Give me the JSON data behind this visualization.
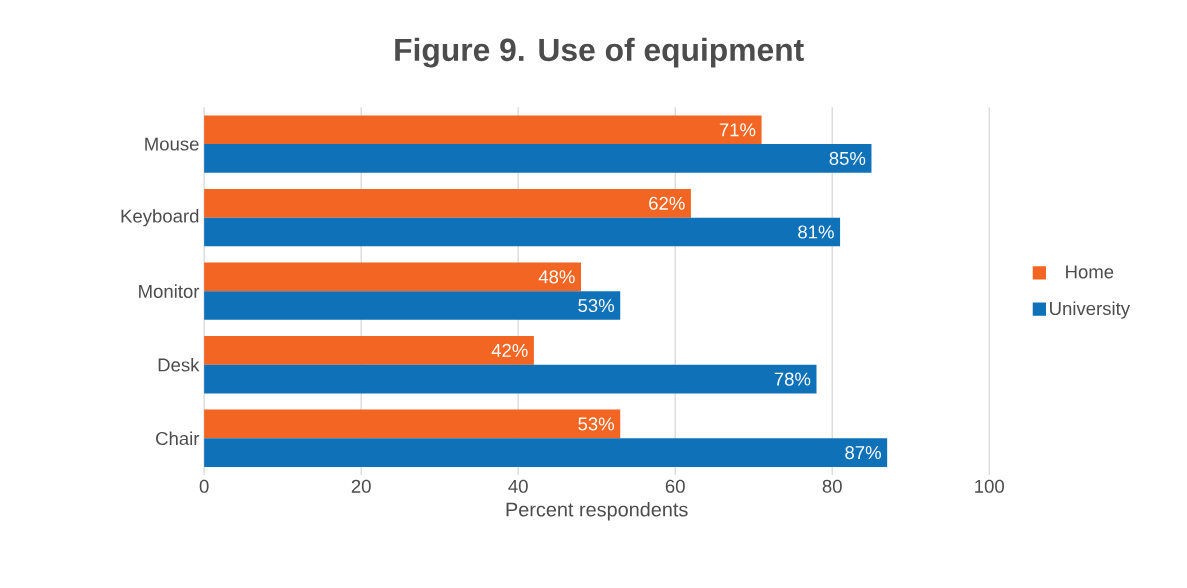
{
  "chart_data": {
    "type": "bar",
    "orientation": "horizontal",
    "title": "Figure 9. Use of equipment",
    "xlabel": "Percent respondents",
    "categories": [
      "Mouse",
      "Keyboard",
      "Monitor",
      "Desk",
      "Chair"
    ],
    "series": [
      {
        "name": "Home",
        "color": "#f26522",
        "values": [
          71,
          62,
          48,
          42,
          53
        ],
        "value_labels": [
          "71%",
          "62%",
          "48%",
          "42%",
          "53%"
        ]
      },
      {
        "name": "University",
        "color": "#0f72b9",
        "values": [
          85,
          81,
          53,
          78,
          87
        ],
        "value_labels": [
          "85%",
          "81%",
          "53%",
          "78%",
          "87%"
        ]
      }
    ],
    "xlim": [
      0,
      100
    ],
    "xticks": [
      0,
      20,
      40,
      60,
      80,
      100
    ],
    "grid": "x",
    "legend": "right"
  }
}
